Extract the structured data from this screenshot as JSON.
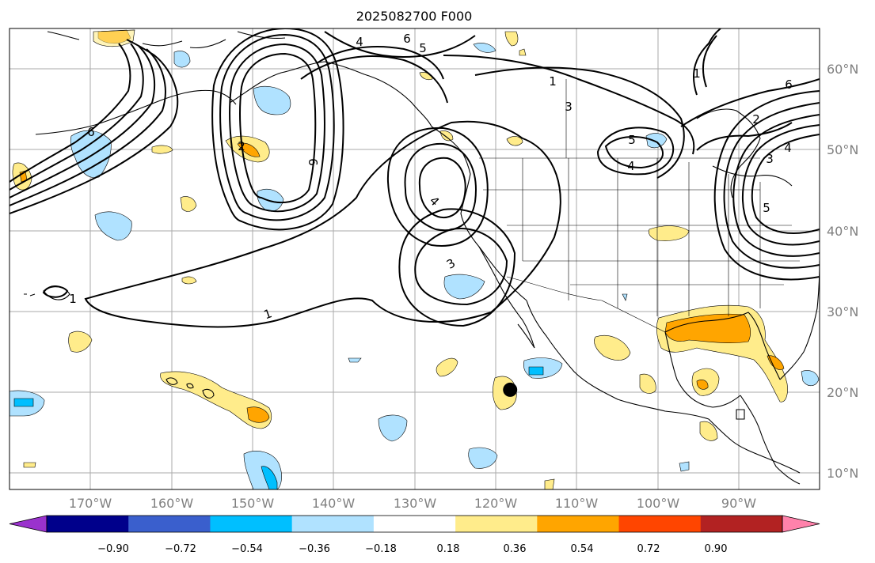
{
  "title": "2025082700 F000",
  "lon_labels": [
    "170°W",
    "160°W",
    "150°W",
    "140°W",
    "130°W",
    "120°W",
    "110°W",
    "100°W",
    "90°W"
  ],
  "lat_labels": [
    "60°N",
    "50°N",
    "40°N",
    "30°N",
    "20°N",
    "10°N"
  ],
  "colorbar": {
    "colors": [
      "#9a32cd",
      "#00008b",
      "#3a5fcd",
      "#00bfff",
      "#b0e2ff",
      "#ffffff",
      "#ffec8b",
      "#ffa500",
      "#ff4500",
      "#b22222",
      "#ff82ab"
    ],
    "tick_labels": [
      "−0.90",
      "−0.72",
      "−0.54",
      "−0.36",
      "−0.18",
      "0.18",
      "0.36",
      "0.54",
      "0.72",
      "0.90"
    ],
    "levels": [
      -0.9,
      -0.72,
      -0.54,
      -0.36,
      -0.18,
      0.18,
      0.36,
      0.54,
      0.72,
      0.9
    ]
  },
  "contour_labels": [
    "1",
    "1",
    "1",
    "3",
    "3",
    "4",
    "4",
    "4",
    "5",
    "5",
    "6",
    "6",
    "6",
    "2",
    "2",
    "4",
    "5",
    "3",
    "6",
    "1"
  ],
  "map": {
    "lon_range": [
      -180,
      -80
    ],
    "lat_range": [
      8,
      65
    ],
    "storm_marker": {
      "lon": -118.2,
      "lat": 20.3
    }
  }
}
